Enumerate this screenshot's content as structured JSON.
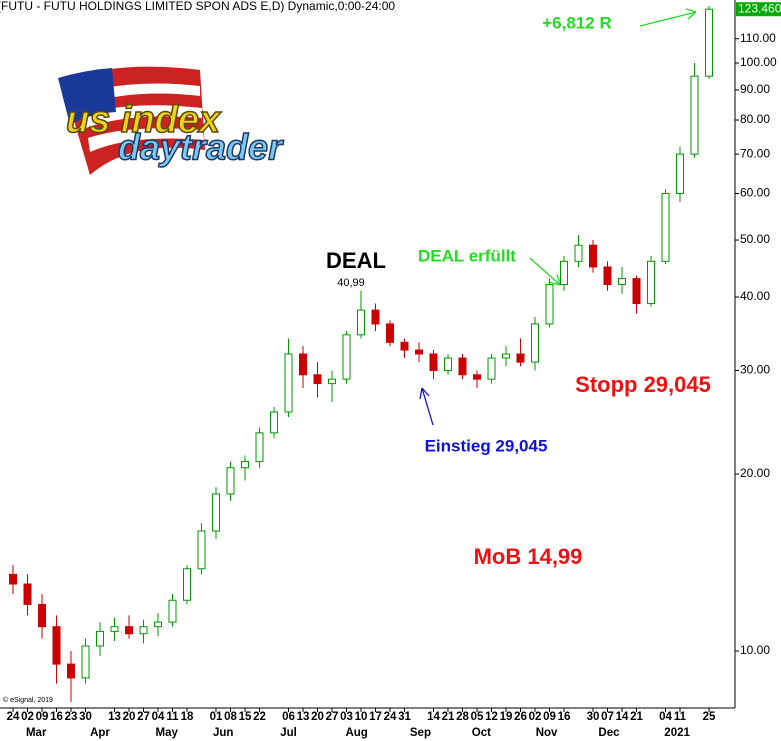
{
  "chart_data": {
    "type": "candlestick",
    "title": "(FUTU - FUTU HOLDINGS LIMITED SPON ADS E,D) Dynamic,0:00-24:00",
    "credit": "© eSignal, 2019",
    "logo": {
      "line1": "us index",
      "line2": "daytrader"
    },
    "log_y": true,
    "grid": false,
    "y_axis_side": "right",
    "up_color": "#009900",
    "down_color": "#cc0000",
    "categories": [
      null,
      null,
      null,
      null,
      null,
      null,
      null,
      null,
      null,
      null,
      null,
      null,
      null,
      null,
      null,
      null,
      null,
      null,
      null,
      null,
      null,
      null,
      null,
      null,
      null,
      null,
      null,
      null,
      null,
      null,
      null,
      null,
      null,
      null,
      null,
      null,
      null,
      null,
      null,
      null,
      null,
      null,
      null,
      null,
      null,
      null,
      null,
      null,
      null
    ],
    "open": [
      13.5,
      13,
      12,
      11,
      9.5,
      9,
      10.2,
      10.8,
      11,
      10.7,
      11,
      11.2,
      12.2,
      13.8,
      16,
      18.5,
      20.5,
      21,
      23.5,
      25.5,
      32,
      29.5,
      28.5,
      29,
      34.5,
      38,
      36,
      33.5,
      32.5,
      32,
      30,
      31.5,
      29.5,
      29,
      31.5,
      32,
      31,
      36,
      42,
      46,
      49,
      45,
      42,
      43,
      39,
      46,
      60,
      70,
      95
    ],
    "high": [
      14,
      13.5,
      12.5,
      11.5,
      10,
      10.5,
      11.2,
      11.4,
      11.5,
      11.3,
      11.6,
      12.5,
      14,
      16.5,
      19,
      21,
      21.5,
      24,
      26,
      34,
      33,
      31,
      30,
      35,
      40.99,
      39,
      36.5,
      34,
      33.5,
      32.5,
      32,
      32,
      30,
      32,
      33,
      34,
      37,
      43,
      47,
      51,
      50,
      46,
      45,
      43.5,
      47,
      61,
      72,
      100,
      125
    ],
    "low": [
      12.5,
      11.5,
      10.5,
      8.8,
      8.2,
      8.8,
      9.8,
      10.4,
      10.5,
      10.3,
      10.6,
      11,
      12,
      13.5,
      15.5,
      18,
      19.5,
      20.5,
      23,
      25,
      28,
      27,
      26.5,
      28.5,
      34,
      35,
      33,
      31.5,
      31,
      29,
      29.5,
      29,
      28,
      28.5,
      30.5,
      30.5,
      30,
      35.5,
      41,
      45,
      44,
      41,
      40.5,
      37.5,
      38.5,
      45.5,
      58,
      69,
      94
    ],
    "close": [
      13,
      12,
      11,
      9.5,
      9,
      10.2,
      10.8,
      11,
      10.7,
      11,
      11.2,
      12.2,
      13.8,
      16,
      18.5,
      20.5,
      21,
      23.5,
      25.5,
      32,
      29.5,
      28.5,
      29,
      34.5,
      38,
      36,
      33.5,
      32.5,
      32,
      30,
      31.5,
      29.5,
      29,
      31.5,
      32,
      31,
      36,
      42,
      46,
      49,
      45,
      42,
      43,
      39,
      46,
      60,
      70,
      95,
      123.46
    ],
    "last_price": {
      "value": 123.46,
      "label": "123.460",
      "color": "#00aa00"
    },
    "ylim": [
      8,
      128
    ],
    "yticks": [
      {
        "value": 10,
        "label": "10.00"
      },
      {
        "value": 20,
        "label": "20.00"
      },
      {
        "value": 30,
        "label": "30.00"
      },
      {
        "value": 40,
        "label": "40.00"
      },
      {
        "value": 50,
        "label": "50.00"
      },
      {
        "value": 60,
        "label": "60.00"
      },
      {
        "value": 70,
        "label": "70.00"
      },
      {
        "value": 80,
        "label": "80.00"
      },
      {
        "value": 90,
        "label": "90.00"
      },
      {
        "value": 100,
        "label": "100.00"
      },
      {
        "value": 110,
        "label": "110.00"
      }
    ],
    "xticks": [
      {
        "value": 0,
        "label": "24"
      },
      {
        "value": 1,
        "label": "02"
      },
      {
        "value": 2,
        "label": "09"
      },
      {
        "value": 3,
        "label": "16"
      },
      {
        "value": 4,
        "label": "23"
      },
      {
        "value": 5,
        "label": "30"
      },
      {
        "value": 7,
        "label": "13"
      },
      {
        "value": 8,
        "label": "20"
      },
      {
        "value": 9,
        "label": "27"
      },
      {
        "value": 10,
        "label": "04"
      },
      {
        "value": 11,
        "label": "11"
      },
      {
        "value": 12,
        "label": "18"
      },
      {
        "value": 14,
        "label": "01"
      },
      {
        "value": 15,
        "label": "08"
      },
      {
        "value": 16,
        "label": "15"
      },
      {
        "value": 17,
        "label": "22"
      },
      {
        "value": 19,
        "label": "06"
      },
      {
        "value": 20,
        "label": "13"
      },
      {
        "value": 21,
        "label": "20"
      },
      {
        "value": 22,
        "label": "27"
      },
      {
        "value": 23,
        "label": "03"
      },
      {
        "value": 24,
        "label": "10"
      },
      {
        "value": 25,
        "label": "17"
      },
      {
        "value": 26,
        "label": "24"
      },
      {
        "value": 27,
        "label": "31"
      },
      {
        "value": 29,
        "label": "14"
      },
      {
        "value": 30,
        "label": "21"
      },
      {
        "value": 31,
        "label": "28"
      },
      {
        "value": 32,
        "label": "05"
      },
      {
        "value": 33,
        "label": "12"
      },
      {
        "value": 34,
        "label": "19"
      },
      {
        "value": 35,
        "label": "26"
      },
      {
        "value": 36,
        "label": "02"
      },
      {
        "value": 37,
        "label": "09"
      },
      {
        "value": 38,
        "label": "16"
      },
      {
        "value": 40,
        "label": "30"
      },
      {
        "value": 41,
        "label": "07"
      },
      {
        "value": 42,
        "label": "14"
      },
      {
        "value": 43,
        "label": "21"
      },
      {
        "value": 45,
        "label": "04"
      },
      {
        "value": 46,
        "label": "11"
      },
      {
        "value": 48,
        "label": "25"
      }
    ],
    "month_ticks": [
      {
        "value": 1.6,
        "label": "Mar"
      },
      {
        "value": 6,
        "label": "Apr"
      },
      {
        "value": 10.6,
        "label": "May"
      },
      {
        "value": 14.5,
        "label": "Jun"
      },
      {
        "value": 19,
        "label": "Jul"
      },
      {
        "value": 23.7,
        "label": "Aug"
      },
      {
        "value": 28.1,
        "label": "Sep"
      },
      {
        "value": 32.3,
        "label": "Oct"
      },
      {
        "value": 36.8,
        "label": "Nov"
      },
      {
        "value": 41.1,
        "label": "Dec"
      },
      {
        "value": 45.8,
        "label": "2021"
      }
    ],
    "annotations": [
      {
        "text": "DEAL",
        "color": "#000000"
      },
      {
        "text": "40,99",
        "color": "#000000"
      },
      {
        "text": "DEAL erfüllt",
        "color": "#22dd22"
      },
      {
        "text": "Einstieg 29,045",
        "color": "#1010dd"
      },
      {
        "text": "Stopp 29,045",
        "color": "#ee1111"
      },
      {
        "text": "MoB 14,99",
        "color": "#ee1111"
      },
      {
        "text": "+6,812 R",
        "color": "#22dd22"
      }
    ]
  }
}
